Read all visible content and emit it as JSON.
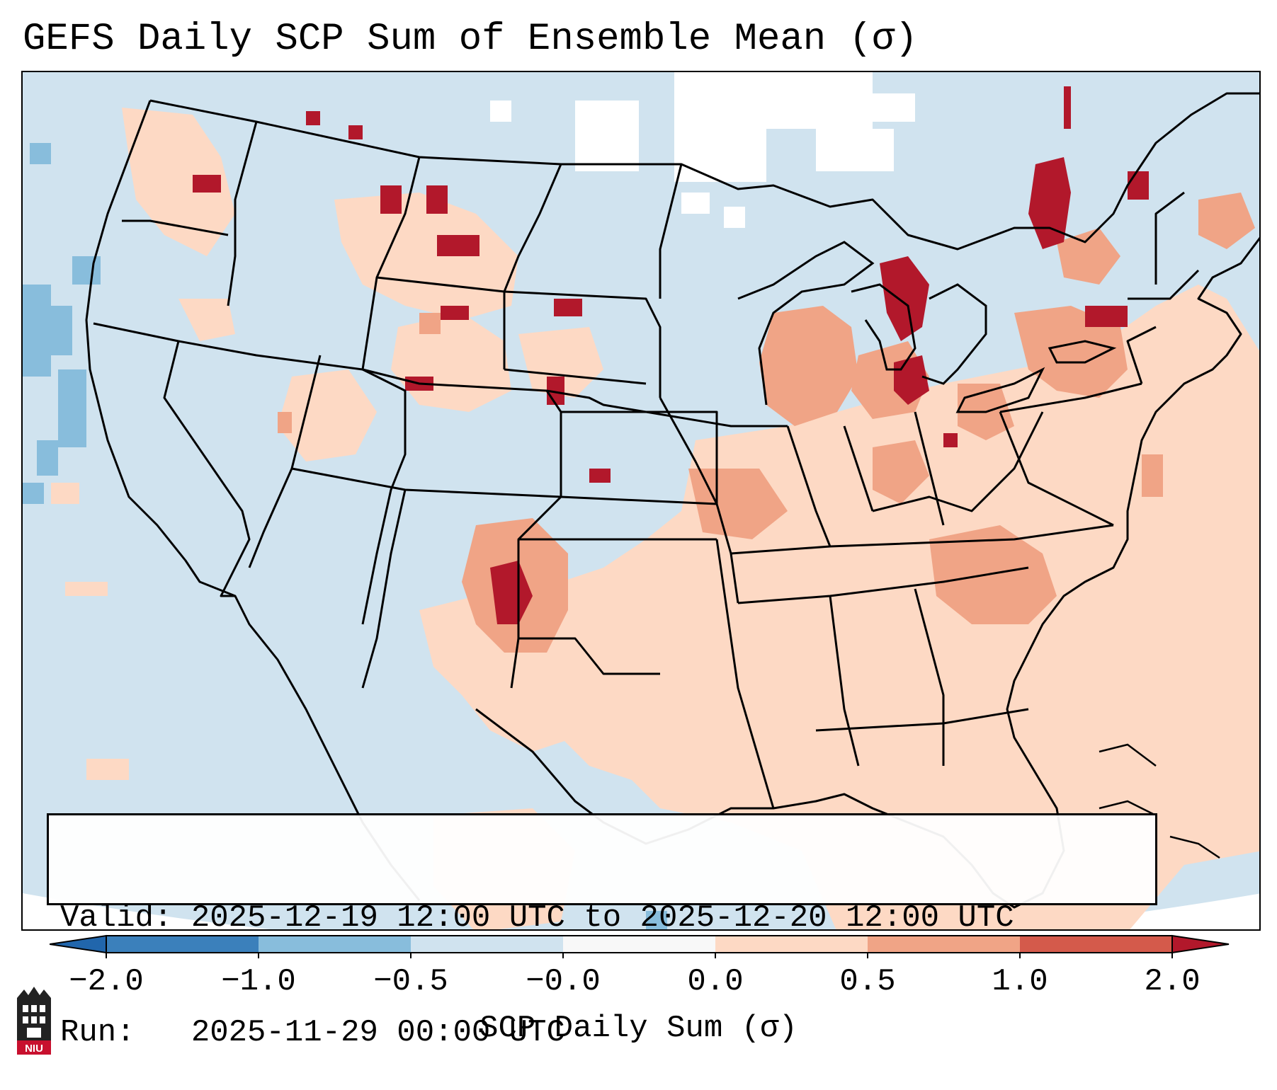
{
  "title": "GEFS Daily SCP Sum of Ensemble Mean (σ)",
  "info": {
    "valid_label": "Valid:",
    "valid_value": "2025-12-19 12:00 UTC to 2025-12-20 12:00 UTC",
    "run_label": "Run:",
    "run_value": "2025-11-29 00:00 UTC"
  },
  "colorbar": {
    "label": "SCP Daily Sum (σ)",
    "ticks": [
      "−2.0",
      "−1.0",
      "−0.5",
      "−0.0",
      "0.0",
      "0.5",
      "1.0",
      "2.0"
    ],
    "colors": [
      "#3b80bb",
      "#88bddc",
      "#d0e3ef",
      "#f8f8f8",
      "#fdd9c4",
      "#f0a486",
      "#d45a4b",
      "#b2182b"
    ]
  },
  "logo": {
    "text": "NIU",
    "color": "#c8102e"
  },
  "map": {
    "background_color": "#d0e3ef",
    "extend_color": "#ffffff"
  }
}
